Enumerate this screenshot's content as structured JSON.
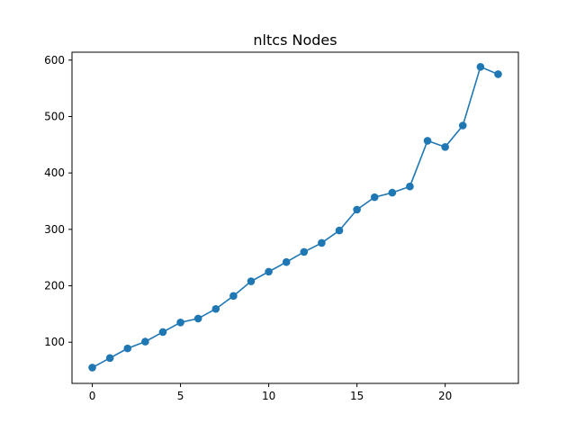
{
  "chart_data": {
    "type": "line",
    "title": "nltcs Nodes",
    "xlabel": "",
    "ylabel": "",
    "xlim": [
      -1.15,
      24.15
    ],
    "ylim": [
      27,
      614
    ],
    "x_ticks": [
      0,
      5,
      10,
      15,
      20
    ],
    "y_ticks": [
      100,
      200,
      300,
      400,
      500,
      600
    ],
    "x_tick_labels": [
      "0",
      "5",
      "10",
      "15",
      "20"
    ],
    "y_tick_labels": [
      "100",
      "200",
      "300",
      "400",
      "500",
      "600"
    ],
    "grid": false,
    "legend": "none",
    "markers": true,
    "series": [
      {
        "name": "nltcs Nodes",
        "color": "#1f77b4",
        "x": [
          0,
          1,
          2,
          3,
          4,
          5,
          6,
          7,
          8,
          9,
          10,
          11,
          12,
          13,
          14,
          15,
          16,
          17,
          18,
          19,
          20,
          21,
          22,
          23
        ],
        "values": [
          55,
          72,
          89,
          101,
          118,
          135,
          142,
          159,
          182,
          208,
          225,
          242,
          260,
          276,
          298,
          335,
          357,
          365,
          376,
          457,
          446,
          484,
          588,
          575
        ]
      }
    ]
  }
}
